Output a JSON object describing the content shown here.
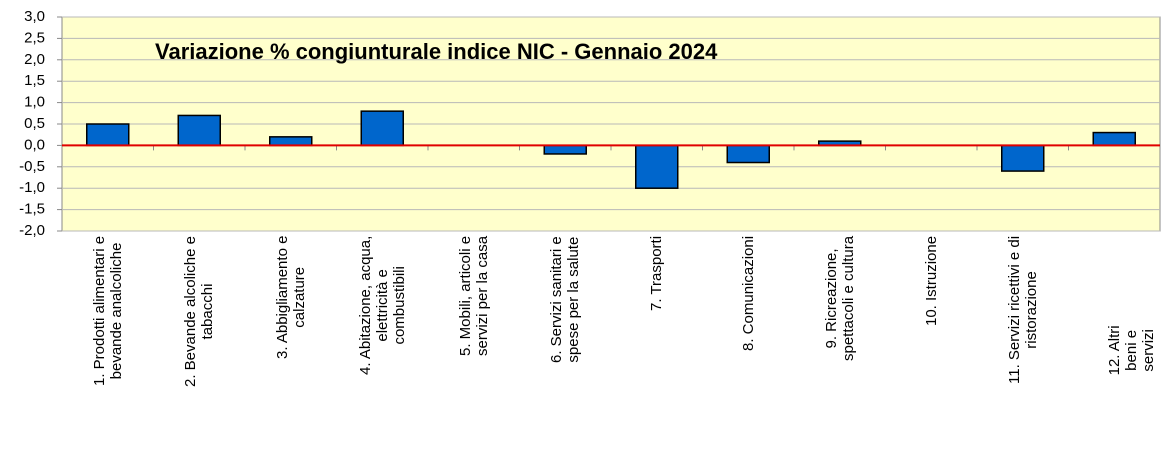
{
  "chart_data": {
    "type": "bar",
    "title": "Variazione % congiunturale indice NIC -  Gennaio 2024",
    "categories": [
      "1. Prodotti alimentari e\nbevande analcoliche",
      "2. Bevande alcoliche e\ntabacchi",
      "3. Abbigliamento e\ncalzature",
      "4. Abitazione, acqua,\nelettricità e\ncombustibili",
      "5. Mobili, articoli e\nservizi per la casa",
      "6. Servizi sanitari e\nspese per la salute",
      "7. Trasporti",
      "8. Comunicazioni",
      "9. Ricreazione,\nspettacoli e cultura",
      "10. Istruzione",
      "11. Servizi ricettivi e di\nristorazione",
      "12. Altri beni e servizi"
    ],
    "values": [
      0.5,
      0.7,
      0.2,
      0.8,
      0,
      -0.2,
      -1.0,
      -0.4,
      0.1,
      0,
      -0.6,
      0.3
    ],
    "color": "#0066cc",
    "ylim": [
      -2,
      3
    ],
    "yticks": [
      {
        "value": -2,
        "label": "-2,0"
      },
      {
        "value": -1.5,
        "label": "-1,5"
      },
      {
        "value": -1,
        "label": "-1,0"
      },
      {
        "value": -0.5,
        "label": "-0,5"
      },
      {
        "value": 0,
        "label": "0,0"
      },
      {
        "value": 0.5,
        "label": "0,5"
      },
      {
        "value": 1,
        "label": "1,0"
      },
      {
        "value": 1.5,
        "label": "1,5"
      },
      {
        "value": 2,
        "label": "2,0"
      },
      {
        "value": 2.5,
        "label": "2,5"
      },
      {
        "value": 3,
        "label": "3,0"
      }
    ],
    "grid": true
  }
}
